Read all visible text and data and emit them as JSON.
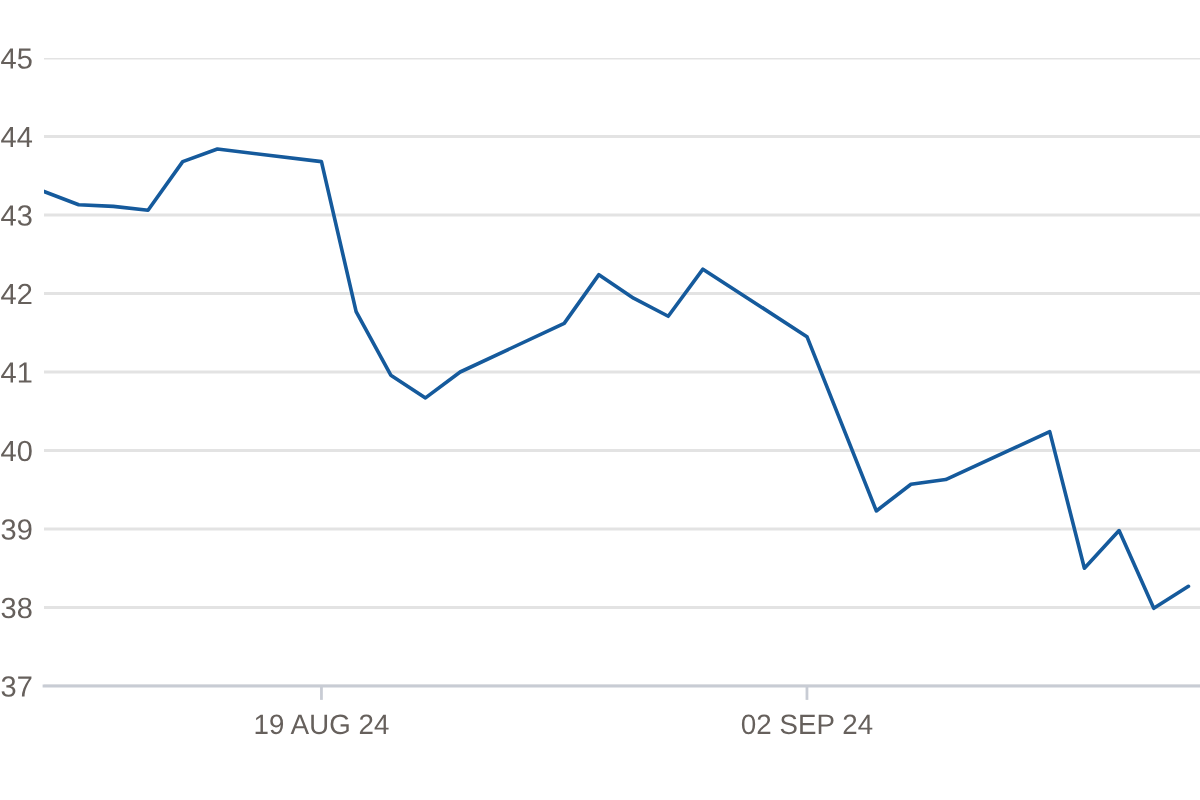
{
  "chart_data": {
    "type": "line",
    "x": [
      "2024-08-11",
      "2024-08-12",
      "2024-08-13",
      "2024-08-14",
      "2024-08-15",
      "2024-08-16",
      "2024-08-19",
      "2024-08-20",
      "2024-08-21",
      "2024-08-22",
      "2024-08-23",
      "2024-08-26",
      "2024-08-27",
      "2024-08-28",
      "2024-08-29",
      "2024-08-30",
      "2024-09-02",
      "2024-09-04",
      "2024-09-05",
      "2024-09-06",
      "2024-09-09",
      "2024-09-10",
      "2024-09-11",
      "2024-09-12",
      "2024-09-13"
    ],
    "series": [
      {
        "color": "#155a9c",
        "values": [
          43.3,
          43.13,
          43.11,
          43.06,
          43.68,
          43.84,
          43.68,
          41.77,
          40.96,
          40.67,
          41.0,
          41.62,
          42.24,
          41.94,
          41.71,
          42.31,
          41.45,
          39.23,
          39.57,
          39.63,
          40.24,
          38.5,
          38.98,
          37.99,
          38.27
        ]
      }
    ],
    "xlim": [
      "2024-08-11",
      "2024-09-13T08:00"
    ],
    "xticks": [
      {
        "value": "2024-08-19",
        "label": "19 AUG 24"
      },
      {
        "value": "2024-09-02",
        "label": "02 SEP 24"
      }
    ],
    "ylim": [
      37,
      45
    ],
    "yticks": [
      37,
      38,
      39,
      40,
      41,
      42,
      43,
      44,
      45
    ],
    "grid": "y"
  }
}
